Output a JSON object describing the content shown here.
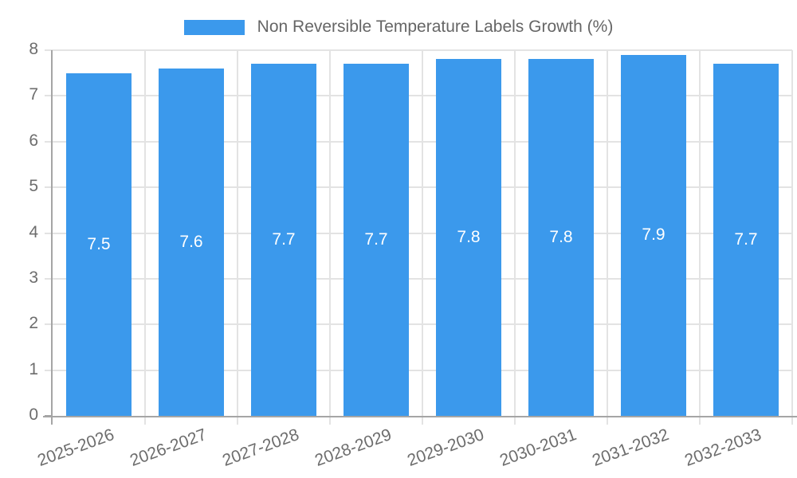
{
  "chart_data": {
    "type": "bar",
    "title": "Non Reversible Temperature Labels Growth (%)",
    "categories": [
      "2025-2026",
      "2026-2027",
      "2027-2028",
      "2028-2029",
      "2029-2030",
      "2030-2031",
      "2031-2032",
      "2032-2033"
    ],
    "values": [
      7.5,
      7.6,
      7.7,
      7.7,
      7.8,
      7.8,
      7.9,
      7.7
    ],
    "xlabel": "",
    "ylabel": "",
    "ylim": [
      0,
      8
    ],
    "yticks": [
      0,
      1,
      2,
      3,
      4,
      5,
      6,
      7,
      8
    ],
    "grid": true,
    "legend_position": "top",
    "value_labels_shown": true,
    "bar_color": "#3b99ec",
    "value_label_color": "#ffffff",
    "grid_color": "#e3e3e3",
    "axis_color": "#a5a5a5",
    "tick_label_color": "#6d6d6d",
    "legend_text_color": "#666666"
  }
}
